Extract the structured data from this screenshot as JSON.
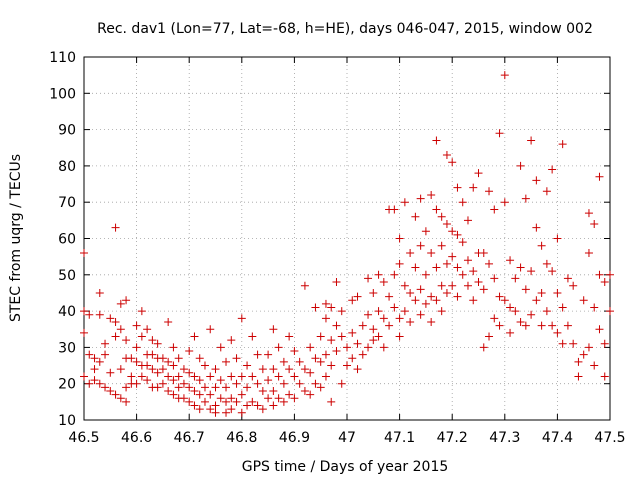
{
  "chart_data": {
    "type": "scatter",
    "title": "Rec. dav1 (Lon=77, Lat=-68, h=HE), days 046-047, 2015, window 002",
    "xlabel": "GPS time / Days of year 2015",
    "ylabel": "STEC from uqrg / TECUs",
    "xlim": [
      46.5,
      47.5
    ],
    "ylim": [
      10,
      110
    ],
    "xticks": [
      "46.5",
      "46.6",
      "46.7",
      "46.8",
      "46.9",
      "47",
      "47.1",
      "47.2",
      "47.3",
      "47.4",
      "47.5"
    ],
    "yticks": [
      "10",
      "20",
      "30",
      "40",
      "50",
      "60",
      "70",
      "80",
      "90",
      "100",
      "110"
    ],
    "grid": true,
    "marker": "+",
    "series_color": "#cc0000",
    "points": [
      [
        46.5,
        56
      ],
      [
        46.5,
        40
      ],
      [
        46.5,
        34
      ],
      [
        46.5,
        22
      ],
      [
        46.51,
        39
      ],
      [
        46.51,
        20
      ],
      [
        46.51,
        28
      ],
      [
        46.52,
        27
      ],
      [
        46.52,
        24
      ],
      [
        46.52,
        21
      ],
      [
        46.53,
        45
      ],
      [
        46.53,
        39
      ],
      [
        46.53,
        26
      ],
      [
        46.53,
        20
      ],
      [
        46.54,
        31
      ],
      [
        46.54,
        28
      ],
      [
        46.54,
        19
      ],
      [
        46.55,
        38
      ],
      [
        46.55,
        23
      ],
      [
        46.55,
        18
      ],
      [
        46.56,
        63
      ],
      [
        46.56,
        37
      ],
      [
        46.56,
        33
      ],
      [
        46.56,
        17
      ],
      [
        46.57,
        42
      ],
      [
        46.57,
        35
      ],
      [
        46.57,
        24
      ],
      [
        46.57,
        16
      ],
      [
        46.58,
        43
      ],
      [
        46.58,
        32
      ],
      [
        46.58,
        27
      ],
      [
        46.58,
        19
      ],
      [
        46.58,
        15
      ],
      [
        46.59,
        27
      ],
      [
        46.59,
        22
      ],
      [
        46.59,
        20
      ],
      [
        46.6,
        36
      ],
      [
        46.6,
        30
      ],
      [
        46.6,
        26
      ],
      [
        46.6,
        20
      ],
      [
        46.61,
        40
      ],
      [
        46.61,
        33
      ],
      [
        46.61,
        25
      ],
      [
        46.61,
        22
      ],
      [
        46.62,
        35
      ],
      [
        46.62,
        28
      ],
      [
        46.62,
        25
      ],
      [
        46.62,
        21
      ],
      [
        46.63,
        32
      ],
      [
        46.63,
        28
      ],
      [
        46.63,
        24
      ],
      [
        46.63,
        19
      ],
      [
        46.64,
        31
      ],
      [
        46.64,
        27
      ],
      [
        46.64,
        23
      ],
      [
        46.64,
        19
      ],
      [
        46.65,
        27
      ],
      [
        46.65,
        24
      ],
      [
        46.65,
        20
      ],
      [
        46.66,
        37
      ],
      [
        46.66,
        26
      ],
      [
        46.66,
        22
      ],
      [
        46.66,
        18
      ],
      [
        46.67,
        30
      ],
      [
        46.67,
        25
      ],
      [
        46.67,
        21
      ],
      [
        46.67,
        17
      ],
      [
        46.68,
        27
      ],
      [
        46.68,
        22
      ],
      [
        46.68,
        19
      ],
      [
        46.68,
        16
      ],
      [
        46.69,
        24
      ],
      [
        46.69,
        20
      ],
      [
        46.69,
        16
      ],
      [
        46.7,
        29
      ],
      [
        46.7,
        23
      ],
      [
        46.7,
        19
      ],
      [
        46.7,
        15
      ],
      [
        46.71,
        33
      ],
      [
        46.71,
        22
      ],
      [
        46.71,
        18
      ],
      [
        46.71,
        14
      ],
      [
        46.72,
        27
      ],
      [
        46.72,
        21
      ],
      [
        46.72,
        17
      ],
      [
        46.72,
        13
      ],
      [
        46.73,
        25
      ],
      [
        46.73,
        19
      ],
      [
        46.73,
        15
      ],
      [
        46.74,
        35
      ],
      [
        46.74,
        22
      ],
      [
        46.74,
        17
      ],
      [
        46.74,
        13
      ],
      [
        46.75,
        24
      ],
      [
        46.75,
        19
      ],
      [
        46.75,
        14
      ],
      [
        46.75,
        12
      ],
      [
        46.76,
        30
      ],
      [
        46.76,
        21
      ],
      [
        46.76,
        16
      ],
      [
        46.77,
        26
      ],
      [
        46.77,
        19
      ],
      [
        46.77,
        15
      ],
      [
        46.77,
        12
      ],
      [
        46.78,
        32
      ],
      [
        46.78,
        22
      ],
      [
        46.78,
        16
      ],
      [
        46.78,
        13
      ],
      [
        46.79,
        27
      ],
      [
        46.79,
        20
      ],
      [
        46.79,
        15
      ],
      [
        46.8,
        38
      ],
      [
        46.8,
        22
      ],
      [
        46.8,
        17
      ],
      [
        46.8,
        12
      ],
      [
        46.81,
        25
      ],
      [
        46.81,
        19
      ],
      [
        46.81,
        14
      ],
      [
        46.82,
        33
      ],
      [
        46.82,
        22
      ],
      [
        46.82,
        15
      ],
      [
        46.83,
        28
      ],
      [
        46.83,
        20
      ],
      [
        46.83,
        14
      ],
      [
        46.84,
        24
      ],
      [
        46.84,
        18
      ],
      [
        46.84,
        13
      ],
      [
        46.85,
        28
      ],
      [
        46.85,
        21
      ],
      [
        46.85,
        16
      ],
      [
        46.86,
        35
      ],
      [
        46.86,
        24
      ],
      [
        46.86,
        18
      ],
      [
        46.86,
        14
      ],
      [
        46.87,
        30
      ],
      [
        46.87,
        22
      ],
      [
        46.87,
        16
      ],
      [
        46.88,
        26
      ],
      [
        46.88,
        20
      ],
      [
        46.88,
        15
      ],
      [
        46.89,
        33
      ],
      [
        46.89,
        24
      ],
      [
        46.89,
        17
      ],
      [
        46.9,
        29
      ],
      [
        46.9,
        22
      ],
      [
        46.9,
        16
      ],
      [
        46.91,
        26
      ],
      [
        46.91,
        20
      ],
      [
        46.92,
        47
      ],
      [
        46.92,
        24
      ],
      [
        46.92,
        18
      ],
      [
        46.93,
        30
      ],
      [
        46.93,
        23
      ],
      [
        46.93,
        17
      ],
      [
        46.94,
        41
      ],
      [
        46.94,
        27
      ],
      [
        46.94,
        20
      ],
      [
        46.95,
        33
      ],
      [
        46.95,
        26
      ],
      [
        46.95,
        19
      ],
      [
        46.96,
        42
      ],
      [
        46.96,
        38
      ],
      [
        46.96,
        28
      ],
      [
        46.96,
        22
      ],
      [
        46.97,
        41
      ],
      [
        46.97,
        32
      ],
      [
        46.97,
        25
      ],
      [
        46.97,
        15
      ],
      [
        46.98,
        48
      ],
      [
        46.98,
        36
      ],
      [
        46.98,
        29
      ],
      [
        46.99,
        40
      ],
      [
        46.99,
        33
      ],
      [
        46.99,
        20
      ],
      [
        47.0,
        30
      ],
      [
        47.0,
        25
      ],
      [
        47.01,
        43
      ],
      [
        47.01,
        34
      ],
      [
        47.01,
        27
      ],
      [
        47.02,
        44
      ],
      [
        47.02,
        31
      ],
      [
        47.02,
        24
      ],
      [
        47.03,
        36
      ],
      [
        47.03,
        28
      ],
      [
        47.04,
        49
      ],
      [
        47.04,
        39
      ],
      [
        47.04,
        30
      ],
      [
        47.05,
        45
      ],
      [
        47.05,
        35
      ],
      [
        47.05,
        32
      ],
      [
        47.06,
        50
      ],
      [
        47.06,
        40
      ],
      [
        47.06,
        33
      ],
      [
        47.07,
        48
      ],
      [
        47.07,
        38
      ],
      [
        47.07,
        30
      ],
      [
        47.08,
        68
      ],
      [
        47.08,
        44
      ],
      [
        47.08,
        36
      ],
      [
        47.09,
        68
      ],
      [
        47.09,
        50
      ],
      [
        47.09,
        41
      ],
      [
        47.1,
        60
      ],
      [
        47.1,
        53
      ],
      [
        47.1,
        38
      ],
      [
        47.1,
        33
      ],
      [
        47.11,
        70
      ],
      [
        47.11,
        47
      ],
      [
        47.11,
        40
      ],
      [
        47.12,
        56
      ],
      [
        47.12,
        45
      ],
      [
        47.12,
        37
      ],
      [
        47.13,
        66
      ],
      [
        47.13,
        52
      ],
      [
        47.13,
        43
      ],
      [
        47.14,
        71
      ],
      [
        47.14,
        58
      ],
      [
        47.14,
        46
      ],
      [
        47.14,
        39
      ],
      [
        47.15,
        62
      ],
      [
        47.15,
        50
      ],
      [
        47.15,
        42
      ],
      [
        47.16,
        72
      ],
      [
        47.16,
        56
      ],
      [
        47.16,
        44
      ],
      [
        47.16,
        37
      ],
      [
        47.17,
        87
      ],
      [
        47.17,
        68
      ],
      [
        47.17,
        52
      ],
      [
        47.17,
        43
      ],
      [
        47.18,
        66
      ],
      [
        47.18,
        58
      ],
      [
        47.18,
        47
      ],
      [
        47.18,
        40
      ],
      [
        47.19,
        83
      ],
      [
        47.19,
        64
      ],
      [
        47.19,
        53
      ],
      [
        47.19,
        45
      ],
      [
        47.2,
        81
      ],
      [
        47.2,
        62
      ],
      [
        47.2,
        55
      ],
      [
        47.2,
        47
      ],
      [
        47.21,
        74
      ],
      [
        47.21,
        61
      ],
      [
        47.21,
        52
      ],
      [
        47.21,
        44
      ],
      [
        47.22,
        70
      ],
      [
        47.22,
        59
      ],
      [
        47.22,
        50
      ],
      [
        47.23,
        65
      ],
      [
        47.23,
        54
      ],
      [
        47.23,
        47
      ],
      [
        47.24,
        74
      ],
      [
        47.24,
        51
      ],
      [
        47.24,
        43
      ],
      [
        47.25,
        78
      ],
      [
        47.25,
        56
      ],
      [
        47.25,
        48
      ],
      [
        47.26,
        56
      ],
      [
        47.26,
        46
      ],
      [
        47.26,
        30
      ],
      [
        47.27,
        73
      ],
      [
        47.27,
        53
      ],
      [
        47.27,
        33
      ],
      [
        47.28,
        68
      ],
      [
        47.28,
        49
      ],
      [
        47.28,
        38
      ],
      [
        47.29,
        89
      ],
      [
        47.29,
        44
      ],
      [
        47.29,
        36
      ],
      [
        47.3,
        105
      ],
      [
        47.3,
        70
      ],
      [
        47.3,
        43
      ],
      [
        47.31,
        54
      ],
      [
        47.31,
        41
      ],
      [
        47.31,
        34
      ],
      [
        47.32,
        49
      ],
      [
        47.32,
        40
      ],
      [
        47.33,
        80
      ],
      [
        47.33,
        52
      ],
      [
        47.33,
        37
      ],
      [
        47.34,
        71
      ],
      [
        47.34,
        46
      ],
      [
        47.34,
        36
      ],
      [
        47.35,
        87
      ],
      [
        47.35,
        51
      ],
      [
        47.35,
        39
      ],
      [
        47.36,
        76
      ],
      [
        47.36,
        63
      ],
      [
        47.36,
        43
      ],
      [
        47.37,
        58
      ],
      [
        47.37,
        45
      ],
      [
        47.37,
        36
      ],
      [
        47.38,
        73
      ],
      [
        47.38,
        53
      ],
      [
        47.38,
        40
      ],
      [
        47.39,
        79
      ],
      [
        47.39,
        51
      ],
      [
        47.39,
        36
      ],
      [
        47.4,
        60
      ],
      [
        47.4,
        45
      ],
      [
        47.4,
        34
      ],
      [
        47.41,
        86
      ],
      [
        47.41,
        41
      ],
      [
        47.41,
        31
      ],
      [
        47.42,
        49
      ],
      [
        47.42,
        36
      ],
      [
        47.43,
        47
      ],
      [
        47.43,
        31
      ],
      [
        47.44,
        26
      ],
      [
        47.44,
        22
      ],
      [
        47.45,
        43
      ],
      [
        47.45,
        28
      ],
      [
        47.46,
        67
      ],
      [
        47.46,
        56
      ],
      [
        47.46,
        30
      ],
      [
        47.47,
        64
      ],
      [
        47.47,
        41
      ],
      [
        47.47,
        25
      ],
      [
        47.48,
        77
      ],
      [
        47.48,
        50
      ],
      [
        47.48,
        35
      ],
      [
        47.49,
        48
      ],
      [
        47.49,
        31
      ],
      [
        47.49,
        22
      ],
      [
        47.5,
        50
      ],
      [
        47.5,
        40
      ]
    ]
  }
}
